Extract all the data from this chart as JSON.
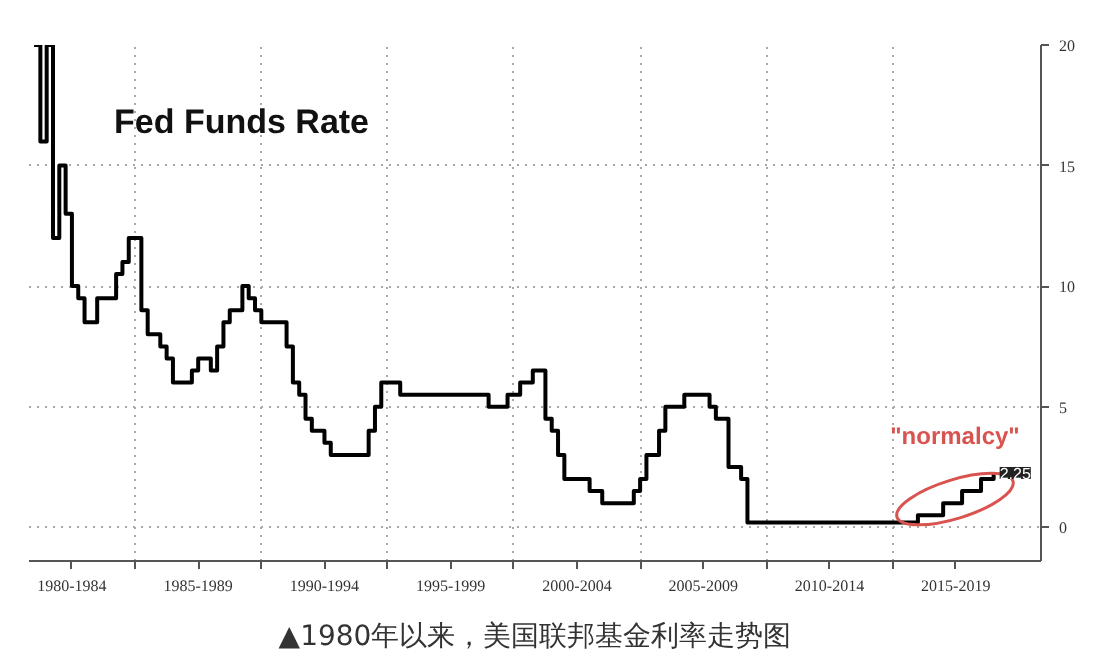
{
  "chart_data": {
    "type": "step",
    "title": "Fed Funds Rate",
    "categories": [
      null,
      null,
      null,
      null,
      null,
      null,
      "1980-1984",
      null,
      null,
      null,
      null,
      null,
      null,
      null,
      null,
      null,
      null,
      null,
      null,
      null,
      null,
      null,
      null,
      null,
      null,
      null,
      "1985-1989",
      null,
      null,
      null,
      null,
      null,
      null,
      null,
      null,
      null,
      null,
      null,
      null,
      null,
      null,
      null,
      null,
      null,
      null,
      null,
      "1990-1994",
      null,
      null,
      null,
      null,
      null,
      null,
      null,
      null,
      null,
      null,
      null,
      null,
      null,
      null,
      null,
      null,
      null,
      null,
      null,
      "1995-1999",
      null,
      null,
      null,
      null,
      null,
      null,
      null,
      null,
      null,
      null,
      null,
      null,
      null,
      null,
      null,
      null,
      null,
      null,
      null,
      "2000-2004",
      null,
      null,
      null,
      null,
      null,
      null,
      null,
      null,
      null,
      null,
      null,
      null,
      null,
      null,
      null,
      null,
      null,
      null,
      null,
      "2005-2009",
      null,
      null,
      null,
      null,
      null,
      null,
      null,
      null,
      null,
      null,
      null,
      null,
      null,
      null,
      null,
      null,
      null,
      null,
      null,
      "2010-2014",
      null,
      null,
      null,
      null,
      null,
      null,
      null,
      null,
      null,
      null,
      null,
      null,
      null,
      null,
      null,
      null,
      null,
      null,
      null,
      "2015-2019",
      null,
      null,
      null,
      null,
      null,
      null
    ],
    "values": [
      20,
      16,
      20,
      12,
      15,
      13,
      10,
      9.5,
      8.5,
      8.5,
      9.5,
      9.5,
      9.5,
      10.5,
      11,
      12,
      12,
      9,
      8,
      8,
      7.5,
      7,
      6,
      6,
      6,
      6.5,
      7,
      7,
      6.5,
      7.5,
      8.5,
      9,
      9,
      10,
      9.5,
      9,
      8.5,
      8.5,
      8.5,
      8.5,
      7.5,
      6,
      5.5,
      4.5,
      4,
      4,
      3.5,
      3,
      3,
      3,
      3,
      3,
      3,
      4,
      5,
      6,
      6,
      6,
      5.5,
      5.5,
      5.5,
      5.5,
      5.5,
      5.5,
      5.5,
      5.5,
      5.5,
      5.5,
      5.5,
      5.5,
      5.5,
      5.5,
      5,
      5,
      5,
      5.5,
      5.5,
      6,
      6,
      6.5,
      6.5,
      4.5,
      4,
      3,
      2,
      2,
      2,
      2,
      1.5,
      1.5,
      1,
      1,
      1,
      1,
      1,
      1.5,
      2,
      3,
      3,
      4,
      5,
      5,
      5,
      5.5,
      5.5,
      5.5,
      5.5,
      5,
      4.5,
      4.5,
      2.5,
      2.5,
      2,
      0.2,
      0.2,
      0.2,
      0.2,
      0.2,
      0.2,
      0.2,
      0.2,
      0.2,
      0.2,
      0.2,
      0.2,
      0.2,
      0.2,
      0.2,
      0.2,
      0.2,
      0.2,
      0.2,
      0.2,
      0.2,
      0.2,
      0.2,
      0.2,
      0.2,
      0.2,
      0.2,
      0.5,
      0.5,
      0.5,
      0.5,
      1,
      1,
      1,
      1.5,
      1.5,
      1.5,
      2,
      2,
      2.25
    ],
    "color": "#000000",
    "ylim": [
      -1.4,
      20
    ],
    "yticks": [
      0,
      5,
      10,
      15,
      20
    ],
    "grid": true,
    "annotations": [
      "\"normalcy\"",
      {
        "text": "2.25",
        "y": 2.25
      },
      "▲1980年以来，美国联邦基金利率走势图"
    ]
  }
}
